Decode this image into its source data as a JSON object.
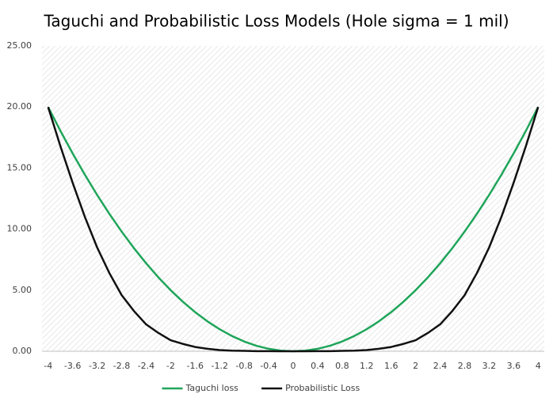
{
  "chart_data": {
    "type": "line",
    "title": "Taguchi and Probabilistic Loss Models (Hole sigma = 1 mil)",
    "categories": [
      -4,
      null,
      -3.6,
      null,
      -3.2,
      null,
      -2.8,
      null,
      -2.4,
      null,
      -2,
      null,
      -1.6,
      null,
      -1.2,
      null,
      -0.8,
      null,
      -0.4,
      null,
      0,
      null,
      0.4,
      null,
      0.8,
      null,
      1.2,
      null,
      1.6,
      null,
      2,
      null,
      2.4,
      null,
      2.8,
      null,
      3.2,
      null,
      3.6,
      null,
      4
    ],
    "series": [
      {
        "name": "Taguchi loss",
        "color": "#1fa55a",
        "values": [
          20,
          18.05,
          16.2,
          14.45,
          12.8,
          11.25,
          9.8,
          8.45,
          7.2,
          6.05,
          5,
          4.05,
          3.2,
          2.45,
          1.8,
          1.25,
          0.8,
          0.45,
          0.2,
          0.05,
          0,
          0.05,
          0.2,
          0.45,
          0.8,
          1.25,
          1.8,
          2.45,
          3.2,
          4.05,
          5,
          6.05,
          7.2,
          8.45,
          9.8,
          11.25,
          12.8,
          14.45,
          16.2,
          18.05,
          20
        ]
      },
      {
        "name": "Probabilistic Loss",
        "color": "#111111",
        "values": [
          20,
          16.8,
          13.8,
          11,
          8.5,
          6.4,
          4.6,
          3.3,
          2.2,
          1.5,
          0.9,
          0.6,
          0.35,
          0.2,
          0.1,
          0.05,
          0.03,
          0.01,
          0.005,
          0,
          0,
          0,
          0.005,
          0.01,
          0.03,
          0.05,
          0.1,
          0.2,
          0.35,
          0.6,
          0.9,
          1.5,
          2.2,
          3.3,
          4.6,
          6.4,
          8.5,
          11,
          13.8,
          16.8,
          20
        ]
      }
    ],
    "ylim": [
      0,
      25
    ],
    "yticks": [
      {
        "value": 0,
        "label": "0.00"
      },
      {
        "value": 5,
        "label": "5.00"
      },
      {
        "value": 10,
        "label": "10.00"
      },
      {
        "value": 15,
        "label": "15.00"
      },
      {
        "value": 20,
        "label": "20.00"
      },
      {
        "value": 25,
        "label": "25.00"
      }
    ],
    "grid": false,
    "legend": "bottom"
  }
}
